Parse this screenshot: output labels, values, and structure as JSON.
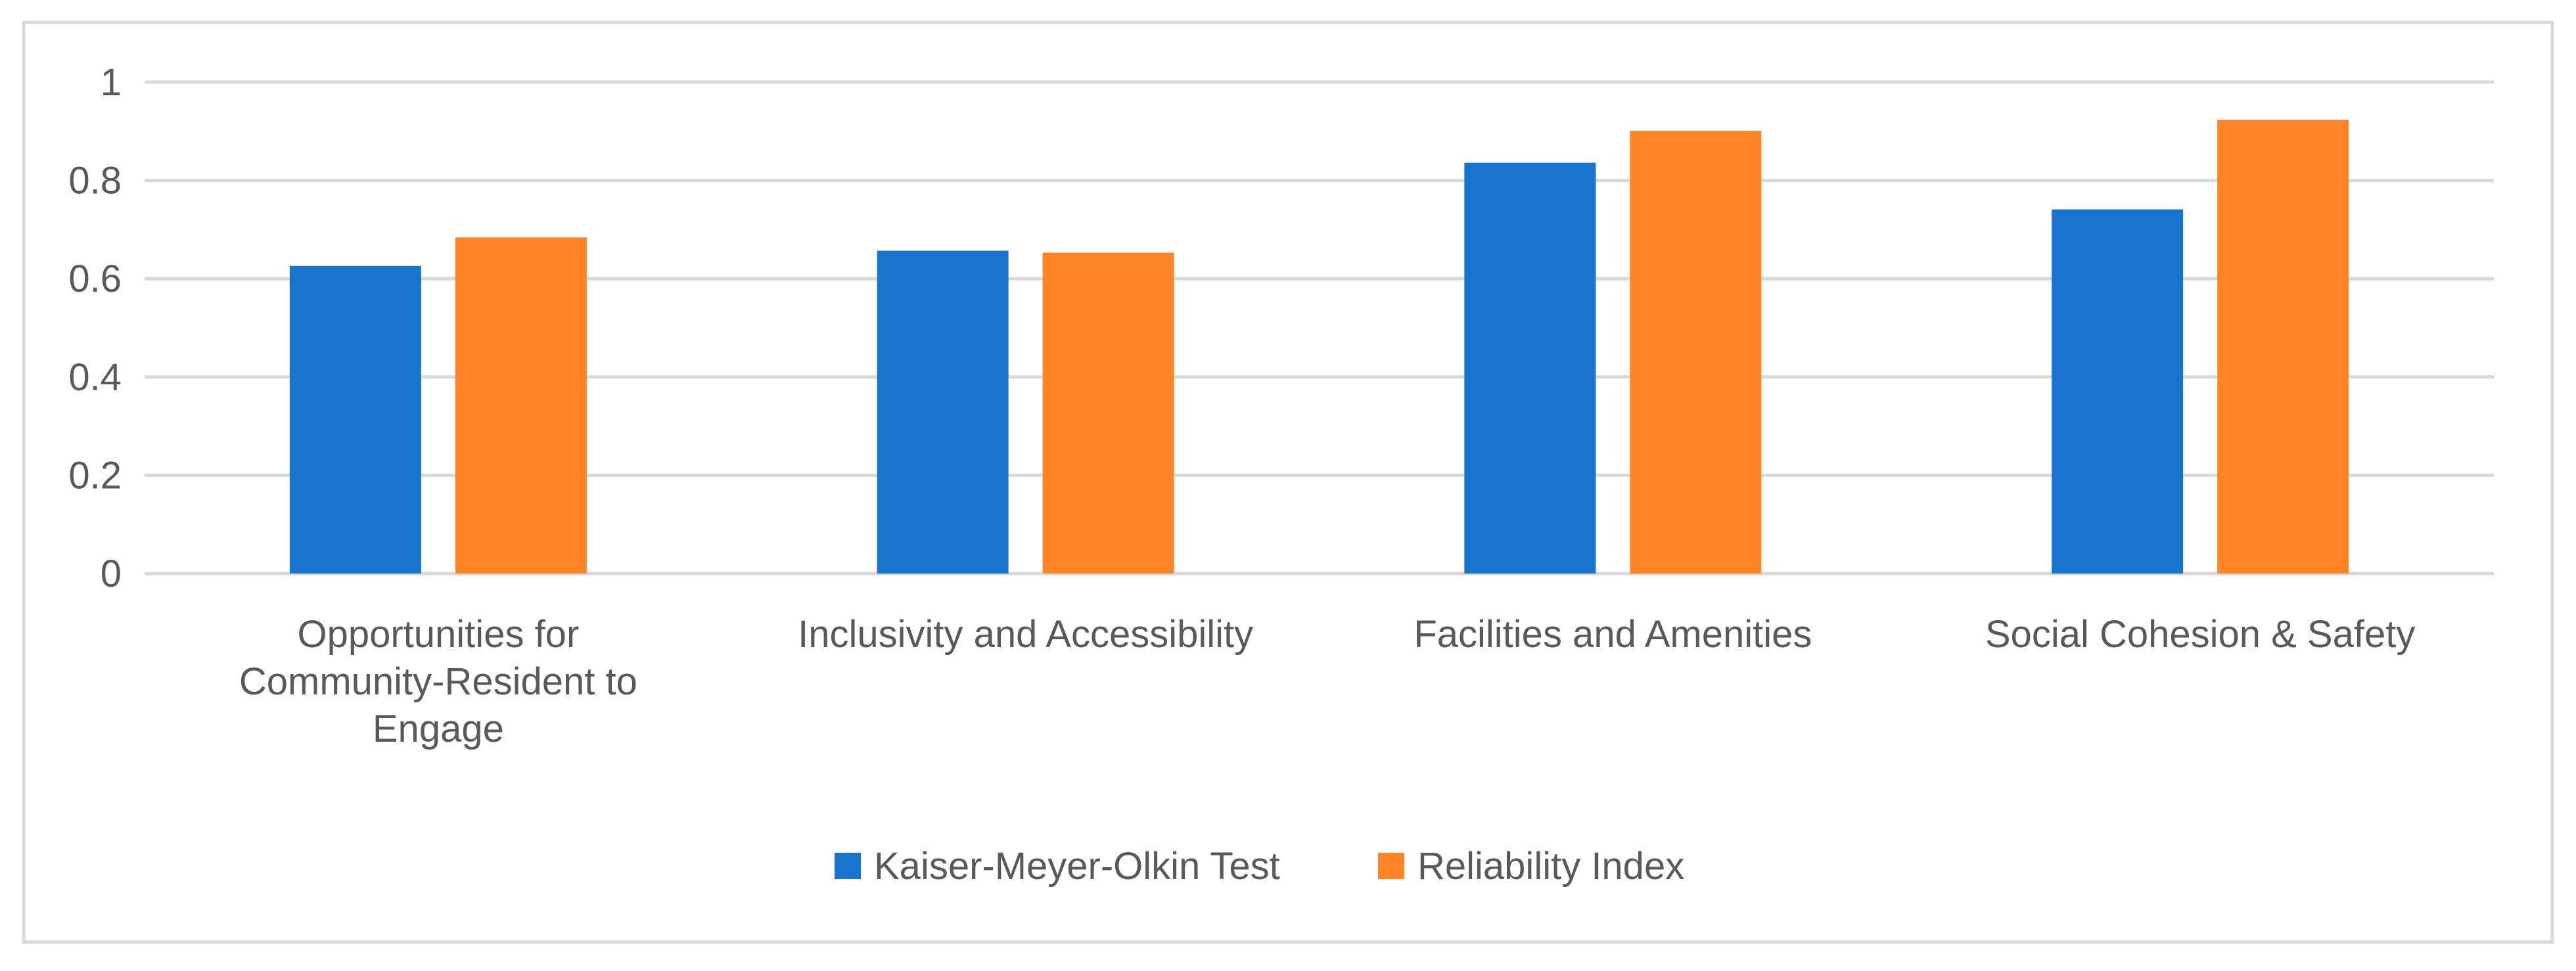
{
  "chart_data": {
    "type": "bar",
    "title": "",
    "xlabel": "",
    "ylabel": "",
    "ylim": [
      0,
      1
    ],
    "yticks": [
      0,
      0.2,
      0.4,
      0.6,
      0.8,
      1
    ],
    "ytick_labels": [
      "0",
      "0.2",
      "0.4",
      "0.6",
      "0.8",
      "1"
    ],
    "grid": true,
    "legend_position": "bottom",
    "categories": [
      [
        "Opportunities for",
        "Community-Resident to",
        "Engage"
      ],
      [
        "Inclusivity and Accessibility"
      ],
      [
        "Facilities and Amenities"
      ],
      [
        "Social Cohesion & Safety"
      ]
    ],
    "series": [
      {
        "name": "Kaiser-Meyer-Olkin Test",
        "color": "#1874CD",
        "values": [
          0.626,
          0.657,
          0.836,
          0.741
        ]
      },
      {
        "name": "Reliability Index",
        "color": "#FF8426",
        "values": [
          0.684,
          0.653,
          0.901,
          0.923
        ]
      }
    ],
    "colors": {
      "gridline": "#D9D9D9",
      "axis_text": "#595959",
      "border": "#D9D9D9"
    }
  }
}
